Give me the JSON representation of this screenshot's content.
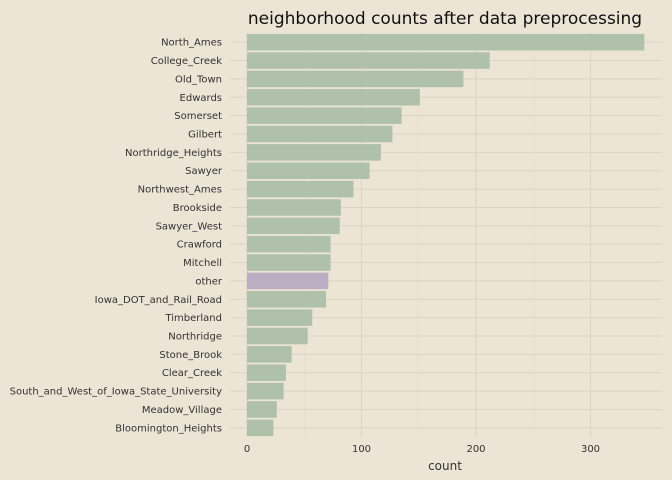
{
  "chart_data": {
    "type": "bar",
    "orientation": "horizontal",
    "title": "neighborhood counts after data preprocessing",
    "xlabel": "count",
    "ylabel": "",
    "xlim": [
      0,
      350
    ],
    "xticks": [
      0,
      100,
      200,
      300
    ],
    "grid": true,
    "categories": [
      "North_Ames",
      "College_Creek",
      "Old_Town",
      "Edwards",
      "Somerset",
      "Gilbert",
      "Northridge_Heights",
      "Sawyer",
      "Northwest_Ames",
      "Brookside",
      "Sawyer_West",
      "Crawford",
      "Mitchell",
      "other",
      "Iowa_DOT_and_Rail_Road",
      "Timberland",
      "Northridge",
      "Stone_Brook",
      "Clear_Creek",
      "South_and_West_of_Iowa_State_University",
      "Meadow_Village",
      "Bloomington_Heights"
    ],
    "values": [
      347,
      212,
      189,
      151,
      135,
      127,
      117,
      107,
      93,
      82,
      81,
      73,
      73,
      71,
      69,
      57,
      53,
      39,
      34,
      32,
      26,
      23
    ],
    "highlight": "other",
    "colors": {
      "bar": "#b0c1ab",
      "highlight_bar": "#bbadc2",
      "background": "#ece4d4",
      "grid_major": "#dcd3c0",
      "grid_minor": "#e4dccb"
    }
  }
}
